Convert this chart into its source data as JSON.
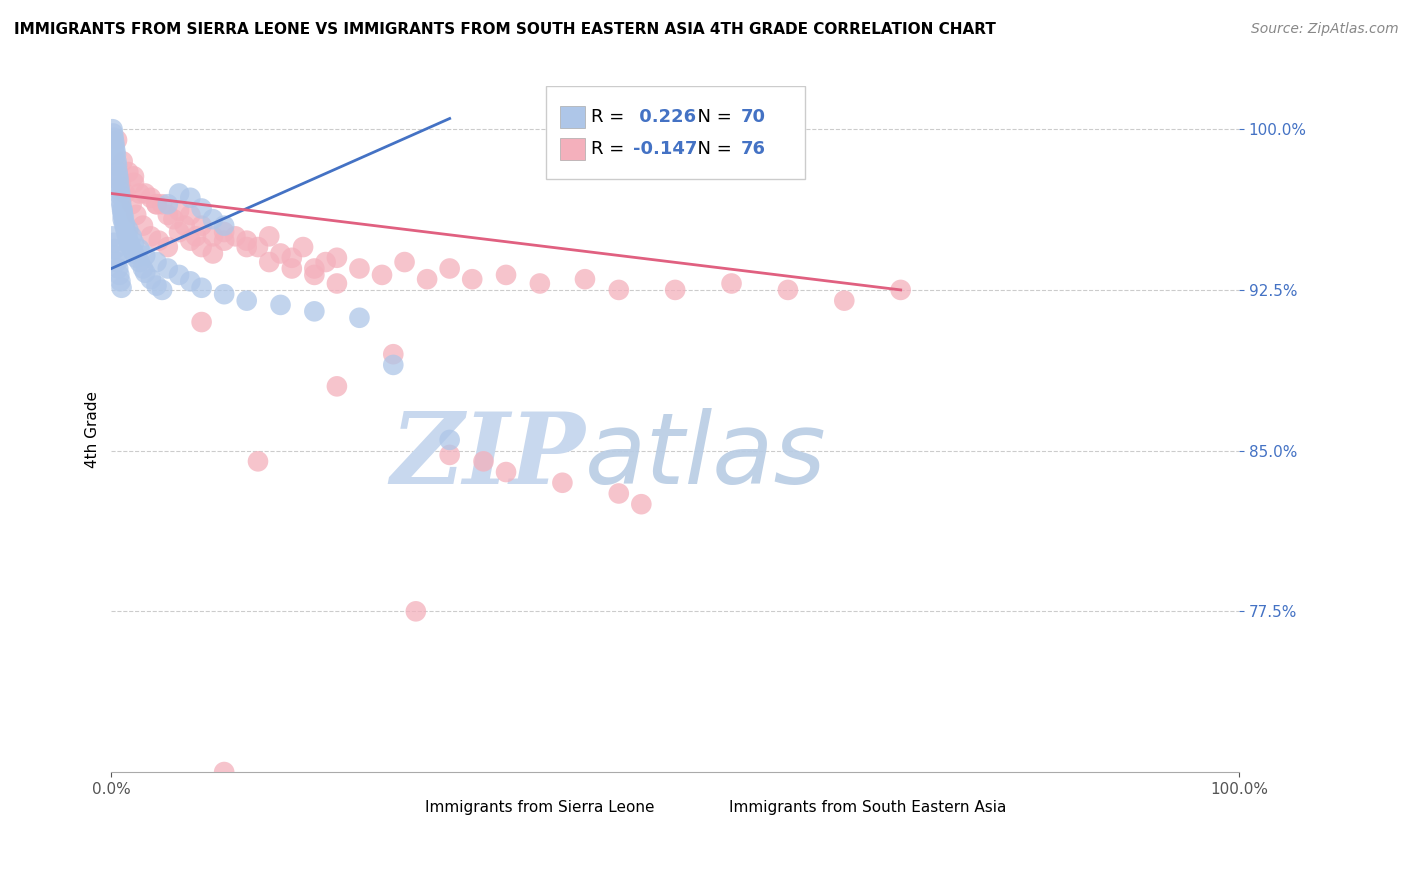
{
  "title": "IMMIGRANTS FROM SIERRA LEONE VS IMMIGRANTS FROM SOUTH EASTERN ASIA 4TH GRADE CORRELATION CHART",
  "source": "Source: ZipAtlas.com",
  "ylabel": "4th Grade",
  "xlim": [
    0.0,
    100.0
  ],
  "ylim": [
    70.0,
    102.0
  ],
  "yticks": [
    77.5,
    85.0,
    92.5,
    100.0
  ],
  "ytick_labels": [
    "77.5%",
    "85.0%",
    "92.5%",
    "100.0%"
  ],
  "xticks": [
    0.0,
    100.0
  ],
  "xtick_labels": [
    "0.0%",
    "100.0%"
  ],
  "series1_label": "Immigrants from Sierra Leone",
  "series1_color": "#aec6e8",
  "series1_edge": "#aec6e8",
  "series1_R": 0.226,
  "series1_N": 70,
  "series2_label": "Immigrants from South Eastern Asia",
  "series2_color": "#f4b0bc",
  "series2_edge": "#f4b0bc",
  "series2_R": -0.147,
  "series2_N": 76,
  "trend1_color": "#4472c4",
  "trend2_color": "#e06080",
  "watermark_zip": "ZIP",
  "watermark_atlas": "atlas",
  "watermark_color_zip": "#c8d8ee",
  "watermark_color_atlas": "#c8d8ee",
  "blue_label_color": "#4472c4",
  "series1_x": [
    0.1,
    0.15,
    0.2,
    0.25,
    0.3,
    0.35,
    0.4,
    0.45,
    0.5,
    0.55,
    0.6,
    0.65,
    0.7,
    0.75,
    0.8,
    0.85,
    0.9,
    0.95,
    1.0,
    1.0,
    1.1,
    1.2,
    1.3,
    1.4,
    1.5,
    1.6,
    1.8,
    2.0,
    2.2,
    2.5,
    2.8,
    3.0,
    3.5,
    4.0,
    4.5,
    5.0,
    6.0,
    7.0,
    8.0,
    9.0,
    10.0,
    0.1,
    0.2,
    0.3,
    0.4,
    0.5,
    0.6,
    0.7,
    0.8,
    0.9,
    1.0,
    1.1,
    1.2,
    1.5,
    1.8,
    2.0,
    2.5,
    3.0,
    4.0,
    5.0,
    6.0,
    7.0,
    8.0,
    10.0,
    12.0,
    15.0,
    18.0,
    22.0,
    25.0,
    30.0
  ],
  "series1_y": [
    100.0,
    99.8,
    99.6,
    99.4,
    99.2,
    99.0,
    98.8,
    98.5,
    98.3,
    98.0,
    97.8,
    97.6,
    97.3,
    97.1,
    96.9,
    96.6,
    96.4,
    96.2,
    96.0,
    95.8,
    95.6,
    95.4,
    95.2,
    95.0,
    94.8,
    94.6,
    94.4,
    94.2,
    94.0,
    93.8,
    93.5,
    93.3,
    93.0,
    92.7,
    92.5,
    96.5,
    97.0,
    96.8,
    96.3,
    95.8,
    95.5,
    95.0,
    94.7,
    94.4,
    94.1,
    93.8,
    93.5,
    93.2,
    92.9,
    92.6,
    96.2,
    95.9,
    95.6,
    95.3,
    95.0,
    94.7,
    94.4,
    94.1,
    93.8,
    93.5,
    93.2,
    92.9,
    92.6,
    92.3,
    92.0,
    91.8,
    91.5,
    91.2,
    89.0,
    85.5
  ],
  "series2_x": [
    0.5,
    1.0,
    1.5,
    2.0,
    2.5,
    3.0,
    3.5,
    4.0,
    4.5,
    5.0,
    5.5,
    6.0,
    6.5,
    7.0,
    7.5,
    8.0,
    9.0,
    10.0,
    11.0,
    12.0,
    13.0,
    14.0,
    15.0,
    16.0,
    17.0,
    18.0,
    19.0,
    20.0,
    22.0,
    24.0,
    26.0,
    28.0,
    30.0,
    32.0,
    35.0,
    38.0,
    42.0,
    45.0,
    50.0,
    55.0,
    60.0,
    65.0,
    70.0,
    0.8,
    1.2,
    1.8,
    2.2,
    2.8,
    3.5,
    4.2,
    5.0,
    6.0,
    7.0,
    8.0,
    9.0,
    10.0,
    12.0,
    14.0,
    16.0,
    18.0,
    20.0,
    25.0,
    30.0,
    35.0,
    40.0,
    45.0,
    47.0,
    33.0,
    20.0,
    13.0,
    8.0,
    4.0,
    2.0,
    0.5,
    27.0,
    10.0
  ],
  "series2_y": [
    99.5,
    98.5,
    98.0,
    97.5,
    97.0,
    97.0,
    96.8,
    96.5,
    96.5,
    96.0,
    95.8,
    96.2,
    95.5,
    96.0,
    95.0,
    95.5,
    95.0,
    95.2,
    95.0,
    94.8,
    94.5,
    95.0,
    94.2,
    94.0,
    94.5,
    93.5,
    93.8,
    94.0,
    93.5,
    93.2,
    93.8,
    93.0,
    93.5,
    93.0,
    93.2,
    92.8,
    93.0,
    92.5,
    92.5,
    92.8,
    92.5,
    92.0,
    92.5,
    97.5,
    97.0,
    96.5,
    96.0,
    95.5,
    95.0,
    94.8,
    94.5,
    95.2,
    94.8,
    94.5,
    94.2,
    94.8,
    94.5,
    93.8,
    93.5,
    93.2,
    92.8,
    89.5,
    84.8,
    84.0,
    83.5,
    83.0,
    82.5,
    84.5,
    88.0,
    84.5,
    91.0,
    96.5,
    97.8,
    98.0,
    77.5,
    70.0
  ]
}
